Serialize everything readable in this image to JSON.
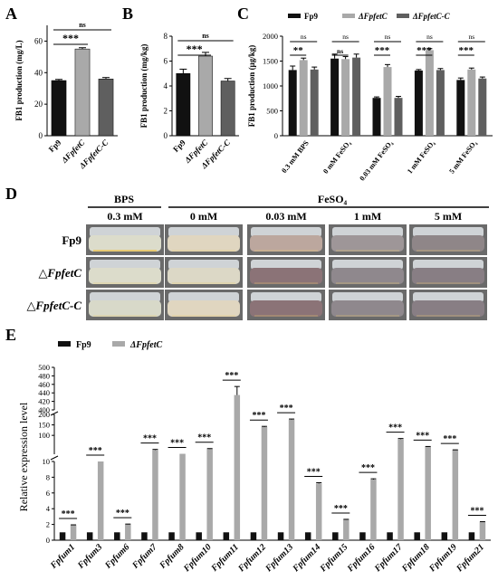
{
  "panels": {
    "A": "A",
    "B": "B",
    "C": "C",
    "D": "D",
    "E": "E"
  },
  "colors": {
    "fp9": "#111111",
    "fpfetc": "#a9a9a9",
    "fpfetcc": "#5f5f5f",
    "sample_cream": "#e3dcc6",
    "sample_pink": "#cdbfb5",
    "sample_dark": "#a9a3a8"
  },
  "chart_data": [
    {
      "id": "A",
      "type": "bar",
      "ylabel": "FB1 production (mg/L)",
      "categories": [
        "Fp9",
        "ΔFpfetC",
        "ΔFpfetC-C"
      ],
      "values": [
        35,
        55,
        36
      ],
      "errors": [
        0.7,
        0.8,
        0.9
      ],
      "ylim": [
        0,
        70
      ],
      "yticks": [
        0,
        20,
        40,
        60
      ],
      "significance": [
        {
          "from": 0,
          "to": 1,
          "label": "***"
        },
        {
          "from": 0,
          "to": 2,
          "label": "ns"
        }
      ]
    },
    {
      "id": "B",
      "type": "bar",
      "ylabel": "FB1 production (mg/kg)",
      "categories": [
        "Fp9",
        "ΔFpfetC",
        "ΔFpfetC-C"
      ],
      "values": [
        5.0,
        6.4,
        4.4
      ],
      "errors": [
        0.35,
        0.3,
        0.2
      ],
      "ylim": [
        0,
        8
      ],
      "yticks": [
        0,
        2,
        4,
        6,
        8
      ],
      "significance": [
        {
          "from": 0,
          "to": 1,
          "label": "***"
        },
        {
          "from": 0,
          "to": 2,
          "label": "ns"
        }
      ]
    },
    {
      "id": "C",
      "type": "bar",
      "ylabel": "FB1 production (µg/kg)",
      "legend": [
        "Fp9",
        "ΔFpfetC",
        "ΔFpfetC-C"
      ],
      "categories": [
        "0.3 mM BPS",
        "0 mM FeSO₄",
        "0.03 mM FeSO₄",
        "1 mM FeSO₄",
        "5 mM FeSO₄"
      ],
      "series": [
        {
          "name": "Fp9",
          "values": [
            1320,
            1550,
            760,
            1310,
            1120
          ],
          "errors": [
            80,
            90,
            20,
            20,
            40
          ]
        },
        {
          "name": "ΔFpfetC",
          "values": [
            1520,
            1540,
            1380,
            1720,
            1330
          ],
          "errors": [
            40,
            50,
            50,
            30,
            30
          ]
        },
        {
          "name": "ΔFpfetC-C",
          "values": [
            1330,
            1570,
            760,
            1320,
            1150
          ],
          "errors": [
            50,
            70,
            30,
            30,
            30
          ]
        }
      ],
      "ylim": [
        0,
        2000
      ],
      "yticks": [
        0,
        500,
        1000,
        1500,
        2000
      ],
      "significance": [
        {
          "group": 0,
          "top": "ns",
          "bottom": "**"
        },
        {
          "group": 1,
          "top": "ns",
          "bottom": "ns"
        },
        {
          "group": 2,
          "top": "ns",
          "bottom": "***"
        },
        {
          "group": 3,
          "top": "ns",
          "bottom": "***"
        },
        {
          "group": 4,
          "top": "ns",
          "bottom": "***"
        }
      ]
    },
    {
      "id": "E",
      "type": "bar",
      "ylabel": "Relative expression level",
      "legend": [
        "Fp9",
        "ΔFpfetC"
      ],
      "categories": [
        "Fpfum1",
        "Fpfum3",
        "Fpfum6",
        "Fpfum7",
        "Fpfum8",
        "Fpfum10",
        "Fpfum11",
        "Fpfum12",
        "Fpfum13",
        "Fpfum14",
        "Fpfum15",
        "Fpfum16",
        "Fpfum17",
        "Fpfum18",
        "Fpfum19",
        "Fpfum21"
      ],
      "series": [
        {
          "name": "Fp9",
          "values": [
            1,
            1,
            1,
            1,
            1,
            1,
            1,
            1,
            1,
            1,
            1,
            1,
            1,
            1,
            1,
            1
          ]
        },
        {
          "name": "ΔFpfetC",
          "values": [
            1.9,
            10,
            2.0,
            30,
            12,
            35,
            435,
            140,
            175,
            7.2,
            2.6,
            7.7,
            82,
            45,
            30,
            2.3
          ],
          "errors": [
            0.05,
            0,
            0.05,
            3,
            0,
            2,
            20,
            3,
            3,
            0.1,
            0.05,
            0.1,
            3,
            2,
            1,
            0.05
          ]
        }
      ],
      "yticks": [
        "0",
        "2",
        "4",
        "6",
        "8",
        "10",
        "100",
        "150",
        "200",
        "400",
        "420",
        "440",
        "460",
        "480",
        "500"
      ],
      "significance": [
        "***",
        "***",
        "***",
        "***",
        "***",
        "***",
        "***",
        "***",
        "***",
        "***",
        "***",
        "***",
        "***",
        "***",
        "***",
        "***"
      ]
    }
  ],
  "panel_d": {
    "header_bps": "BPS",
    "header_feso4": "FeSO₄",
    "columns": [
      "0.3 mM",
      "0 mM",
      "0.03 mM",
      "1 mM",
      "5 mM"
    ],
    "rows": [
      "Fp9",
      "△FpfetC",
      "△FpfetC-C"
    ]
  }
}
